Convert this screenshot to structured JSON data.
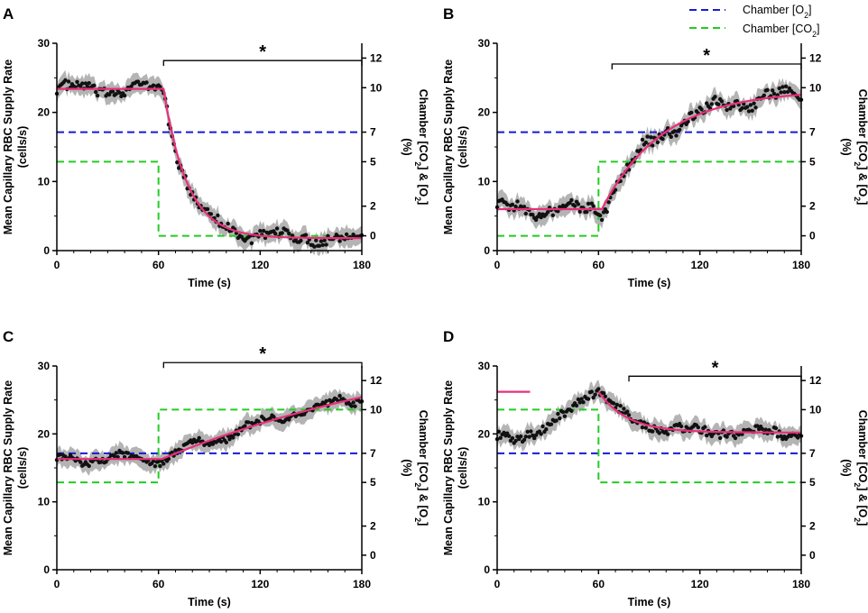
{
  "figure": {
    "legend": [
      {
        "label": "Chamber [O₂]",
        "color": "#1a1ad6"
      },
      {
        "label": "Chamber [CO₂]",
        "color": "#22cc22"
      }
    ],
    "colors": {
      "fit": "#e8307a",
      "points": "#111111",
      "band": "#b4b4b4"
    }
  },
  "chart_data": [
    {
      "panel": "A",
      "type": "scatter",
      "xlabel": "Time (s)",
      "ylabel": [
        "Mean Capillary RBC Supply Rate",
        "(cells/s)"
      ],
      "y2label": "Chamber [CO₂] & [O₂]",
      "y2unit": "(%)",
      "xlim": [
        0,
        180
      ],
      "ylim": [
        0,
        30
      ],
      "y2lim": [
        -1,
        13
      ],
      "x_ticks": [
        0,
        60,
        120,
        180
      ],
      "y_ticks": [
        0,
        10,
        20,
        30
      ],
      "y2_ticks": [
        0,
        2,
        5,
        7,
        10,
        12
      ],
      "o2_percent": 7,
      "co2_percent": {
        "before": 5,
        "after": 0,
        "change_time": 60
      },
      "fit": {
        "baseline": 23.4,
        "final": 1.8,
        "start": 63,
        "tau": 14
      },
      "data_noise": 0.7,
      "data_wave": 0.6,
      "significance": {
        "label": "*",
        "x_start": 63,
        "x_end": 180,
        "y": 27.5
      }
    },
    {
      "panel": "B",
      "type": "scatter",
      "xlabel": "Time (s)",
      "ylabel": [
        "Mean Capillary RBC Supply Rate",
        "(cells/s)"
      ],
      "y2label": "Chamber [CO₂] & [O₂]",
      "y2unit": "(%)",
      "xlim": [
        0,
        180
      ],
      "ylim": [
        0,
        30
      ],
      "y2lim": [
        -1,
        13
      ],
      "x_ticks": [
        0,
        60,
        120,
        180
      ],
      "y_ticks": [
        0,
        10,
        20,
        30
      ],
      "y2_ticks": [
        0,
        2,
        5,
        7,
        10,
        12
      ],
      "o2_percent": 7,
      "co2_percent": {
        "before": 0,
        "after": 5,
        "change_time": 60
      },
      "fit": {
        "baseline": 6.0,
        "final": 23.2,
        "start": 62,
        "tau": 36
      },
      "data_noise": 0.7,
      "data_wave": 0.8,
      "significance": {
        "label": "*",
        "x_start": 68,
        "x_end": 180,
        "y": 27.0
      }
    },
    {
      "panel": "C",
      "type": "scatter",
      "xlabel": "Time (s)",
      "ylabel": [
        "Mean Capillary RBC Supply Rate",
        "(cells/s)"
      ],
      "y2label": "Chamber [CO₂] & [O₂]",
      "y2unit": "(%)",
      "xlim": [
        0,
        180
      ],
      "ylim": [
        0,
        30
      ],
      "y2lim": [
        -1,
        13
      ],
      "x_ticks": [
        0,
        60,
        120,
        180
      ],
      "y_ticks": [
        0,
        10,
        20,
        30
      ],
      "y2_ticks": [
        0,
        2,
        5,
        7,
        10,
        12
      ],
      "o2_percent": 7,
      "co2_percent": {
        "before": 5,
        "after": 10,
        "change_time": 60
      },
      "fit": {
        "baseline": 16.3,
        "final": 36.0,
        "start": 62,
        "tau": 190
      },
      "data_noise": 0.5,
      "data_wave": 0.6,
      "significance": {
        "label": "*",
        "x_start": 63,
        "x_end": 180,
        "y": 30.5
      }
    },
    {
      "panel": "D",
      "type": "scatter",
      "xlabel": "Time (s)",
      "ylabel": [
        "Mean Capillary RBC Supply Rate",
        "(cells/s)"
      ],
      "y2label": "Chamber [CO₂] & [O₂]",
      "y2unit": "(%)",
      "xlim": [
        0,
        180
      ],
      "ylim": [
        0,
        30
      ],
      "y2lim": [
        -1,
        13
      ],
      "x_ticks": [
        0,
        60,
        120,
        180
      ],
      "y_ticks": [
        0,
        10,
        20,
        30
      ],
      "y2_ticks": [
        0,
        2,
        5,
        7,
        10,
        12
      ],
      "o2_percent": 7,
      "co2_percent": {
        "before": 10,
        "after": 5,
        "change_time": 60
      },
      "fit": {
        "baseline": 26.2,
        "final": 20.2,
        "start": 60,
        "tau": 17
      },
      "pre_rise": {
        "start": 20,
        "end": 60,
        "from": 19.8,
        "to": 26.5
      },
      "data_noise": 0.6,
      "data_wave": 0.5,
      "significance": {
        "label": "*",
        "x_start": 78,
        "x_end": 180,
        "y": 28.5
      }
    }
  ]
}
